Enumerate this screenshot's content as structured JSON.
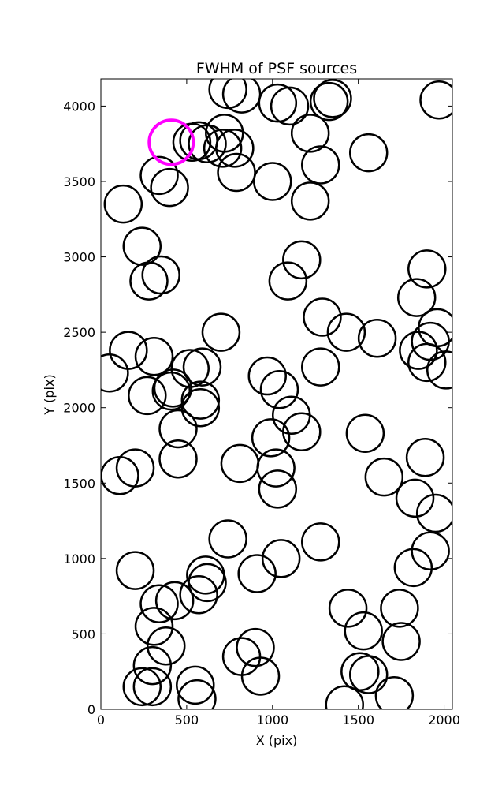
{
  "chart_data": {
    "type": "scatter",
    "title": "FWHM of PSF sources",
    "xlabel": "X (pix)",
    "ylabel": "Y (pix)",
    "xlim": [
      0,
      2048
    ],
    "ylim": [
      0,
      4180
    ],
    "xticks": [
      0,
      500,
      1000,
      1500,
      2000
    ],
    "yticks": [
      0,
      500,
      1000,
      1500,
      2000,
      2500,
      3000,
      3500,
      4000
    ],
    "grid": false,
    "marker": "open-circle",
    "source_color": "#000000",
    "highlight_color": "#ff00ff",
    "sources": [
      {
        "x": 740,
        "y": 4110
      },
      {
        "x": 820,
        "y": 4080
      },
      {
        "x": 1030,
        "y": 4020
      },
      {
        "x": 1100,
        "y": 4000
      },
      {
        "x": 1330,
        "y": 4030
      },
      {
        "x": 1350,
        "y": 4050
      },
      {
        "x": 1970,
        "y": 4040
      },
      {
        "x": 530,
        "y": 3760
      },
      {
        "x": 570,
        "y": 3770
      },
      {
        "x": 620,
        "y": 3750
      },
      {
        "x": 720,
        "y": 3820
      },
      {
        "x": 710,
        "y": 3720
      },
      {
        "x": 780,
        "y": 3720
      },
      {
        "x": 790,
        "y": 3560
      },
      {
        "x": 1220,
        "y": 3820
      },
      {
        "x": 1280,
        "y": 3610
      },
      {
        "x": 1560,
        "y": 3690
      },
      {
        "x": 340,
        "y": 3540
      },
      {
        "x": 400,
        "y": 3460
      },
      {
        "x": 1000,
        "y": 3500
      },
      {
        "x": 1220,
        "y": 3370
      },
      {
        "x": 130,
        "y": 3350
      },
      {
        "x": 240,
        "y": 3070
      },
      {
        "x": 280,
        "y": 2840
      },
      {
        "x": 350,
        "y": 2880
      },
      {
        "x": 1090,
        "y": 2840
      },
      {
        "x": 1170,
        "y": 2980
      },
      {
        "x": 1900,
        "y": 2920
      },
      {
        "x": 1840,
        "y": 2730
      },
      {
        "x": 1290,
        "y": 2600
      },
      {
        "x": 1430,
        "y": 2500
      },
      {
        "x": 1610,
        "y": 2460
      },
      {
        "x": 700,
        "y": 2500
      },
      {
        "x": 160,
        "y": 2380
      },
      {
        "x": 50,
        "y": 2230
      },
      {
        "x": 310,
        "y": 2340
      },
      {
        "x": 270,
        "y": 2080
      },
      {
        "x": 410,
        "y": 2110
      },
      {
        "x": 420,
        "y": 2130
      },
      {
        "x": 520,
        "y": 2260
      },
      {
        "x": 590,
        "y": 2270
      },
      {
        "x": 580,
        "y": 2050
      },
      {
        "x": 580,
        "y": 2000
      },
      {
        "x": 450,
        "y": 1860
      },
      {
        "x": 970,
        "y": 2210
      },
      {
        "x": 1040,
        "y": 2120
      },
      {
        "x": 1110,
        "y": 1950
      },
      {
        "x": 1170,
        "y": 1840
      },
      {
        "x": 1280,
        "y": 2270
      },
      {
        "x": 990,
        "y": 1800
      },
      {
        "x": 1020,
        "y": 1600
      },
      {
        "x": 1030,
        "y": 1460
      },
      {
        "x": 810,
        "y": 1630
      },
      {
        "x": 450,
        "y": 1660
      },
      {
        "x": 200,
        "y": 1600
      },
      {
        "x": 110,
        "y": 1550
      },
      {
        "x": 1540,
        "y": 1830
      },
      {
        "x": 1650,
        "y": 1540
      },
      {
        "x": 1830,
        "y": 1400
      },
      {
        "x": 1890,
        "y": 1670
      },
      {
        "x": 1950,
        "y": 1300
      },
      {
        "x": 1920,
        "y": 1050
      },
      {
        "x": 1820,
        "y": 940
      },
      {
        "x": 1740,
        "y": 670
      },
      {
        "x": 1750,
        "y": 450
      },
      {
        "x": 1710,
        "y": 90
      },
      {
        "x": 1440,
        "y": 670
      },
      {
        "x": 1530,
        "y": 520
      },
      {
        "x": 1510,
        "y": 250
      },
      {
        "x": 1560,
        "y": 230
      },
      {
        "x": 1420,
        "y": 30
      },
      {
        "x": 1280,
        "y": 1110
      },
      {
        "x": 1050,
        "y": 1000
      },
      {
        "x": 910,
        "y": 900
      },
      {
        "x": 740,
        "y": 1130
      },
      {
        "x": 610,
        "y": 890
      },
      {
        "x": 620,
        "y": 840
      },
      {
        "x": 570,
        "y": 760
      },
      {
        "x": 430,
        "y": 720
      },
      {
        "x": 340,
        "y": 700
      },
      {
        "x": 200,
        "y": 920
      },
      {
        "x": 310,
        "y": 550
      },
      {
        "x": 380,
        "y": 420
      },
      {
        "x": 300,
        "y": 290
      },
      {
        "x": 240,
        "y": 150
      },
      {
        "x": 300,
        "y": 150
      },
      {
        "x": 550,
        "y": 160
      },
      {
        "x": 560,
        "y": 70
      },
      {
        "x": 820,
        "y": 350
      },
      {
        "x": 900,
        "y": 410
      },
      {
        "x": 930,
        "y": 220
      },
      {
        "x": 1850,
        "y": 2380
      },
      {
        "x": 1900,
        "y": 2300
      },
      {
        "x": 1920,
        "y": 2440
      },
      {
        "x": 1960,
        "y": 2530
      },
      {
        "x": 2010,
        "y": 2250
      }
    ],
    "highlighted": [
      {
        "x": 410,
        "y": 3760
      }
    ]
  }
}
